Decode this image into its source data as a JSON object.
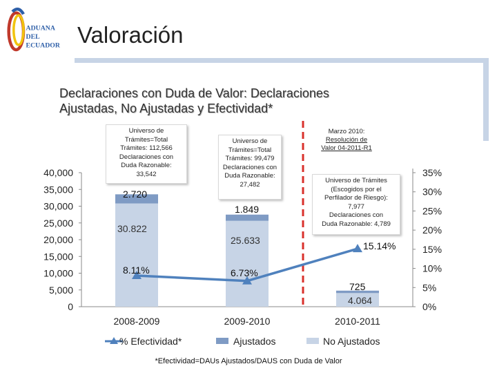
{
  "header": {
    "logo_text": [
      "ADUANA",
      "DEL",
      "ECUADOR"
    ],
    "title": "Valoración"
  },
  "subtitle": {
    "line1": "Declaraciones con Duda de Valor: Declaraciones",
    "line2": "Ajustadas, No Ajustadas y Efectividad*"
  },
  "callouts": {
    "y2008": [
      "Universo de",
      "Trámites=Total",
      "Trámites: 112,566",
      "Declaraciones con",
      "Duda Razonable:",
      "33,542"
    ],
    "y2009": [
      "Universo de",
      "Trámites=Total",
      "Trámites: 99,479",
      "Declaraciones con",
      "Duda Razonable:",
      "27,482"
    ],
    "y2010": [
      "Universo de Trámites",
      "(Escogidos por el",
      "Perfilador de Riesgo):",
      "7,977",
      "Declaraciones con",
      "Duda Razonable: 4,789"
    ]
  },
  "marzo_note": {
    "line1": "Marzo 2010:",
    "line2": "Resolución de",
    "line3": "Valor 04-2011-R1"
  },
  "footnote": "*Efectividad=DAUs Ajustados/DAUS con Duda de Valor",
  "colors": {
    "ajustados": "#7f9bc4",
    "no_ajustados": "#c7d4e6",
    "efectividad": "#4f81bd",
    "dashed_line": "#d9302b"
  },
  "chart_data": {
    "type": "bar",
    "stacked": true,
    "categories": [
      "2008-2009",
      "2009-2010",
      "2010-2011"
    ],
    "series": [
      {
        "name": "No Ajustados",
        "values": [
          30822,
          25633,
          4064
        ],
        "labels": [
          "30.822",
          "25.633",
          "4.064"
        ]
      },
      {
        "name": "Ajustados",
        "values": [
          2720,
          1849,
          725
        ],
        "labels": [
          "2.720",
          "1.849",
          "725"
        ]
      }
    ],
    "line_series": {
      "name": "% Efectividad*",
      "values": [
        8.11,
        6.73,
        15.14
      ],
      "labels": [
        "8.11%",
        "6.73%",
        "15.14%"
      ],
      "axis": "secondary"
    },
    "y_left": {
      "ticks": [
        "0",
        "5,000",
        "10,000",
        "15,000",
        "20,000",
        "25,000",
        "30,000",
        "35,000",
        "40,000"
      ],
      "range": [
        0,
        40000
      ]
    },
    "y_right": {
      "ticks": [
        "0%",
        "5%",
        "10%",
        "15%",
        "20%",
        "25%",
        "30%",
        "35%"
      ],
      "range": [
        0,
        35
      ]
    },
    "legend": [
      "% Efectividad*",
      "Ajustados",
      "No Ajustados"
    ],
    "legend_position": "bottom"
  }
}
